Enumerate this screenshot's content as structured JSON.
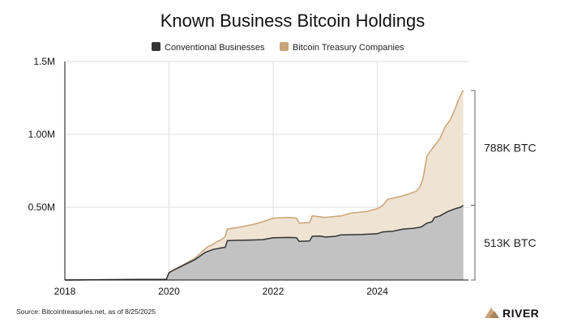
{
  "chart_data": {
    "type": "area",
    "title": "Known Business Bitcoin Holdings",
    "xlabel": "",
    "ylabel": "",
    "xlim": [
      2018.0,
      2025.75
    ],
    "ylim": [
      0,
      1500000
    ],
    "x_ticks": [
      {
        "value": 2018,
        "label": "2018"
      },
      {
        "value": 2020,
        "label": "2020"
      },
      {
        "value": 2022,
        "label": "2022"
      },
      {
        "value": 2024,
        "label": "2024"
      }
    ],
    "y_ticks": [
      {
        "value": 500000,
        "label": "0.50M"
      },
      {
        "value": 1000000,
        "label": "1.00M"
      },
      {
        "value": 1500000,
        "label": "1.5M"
      }
    ],
    "grid": true,
    "stacked": true,
    "legend": "top",
    "series": [
      {
        "name": "Conventional Businesses",
        "color": "#333333",
        "fill": "#c2c2c2",
        "points": [
          [
            2018.0,
            0
          ],
          [
            2018.5,
            1000
          ],
          [
            2019.0,
            3000
          ],
          [
            2019.5,
            4000
          ],
          [
            2019.95,
            5000
          ],
          [
            2020.0,
            50000
          ],
          [
            2020.1,
            70000
          ],
          [
            2020.3,
            105000
          ],
          [
            2020.5,
            140000
          ],
          [
            2020.7,
            190000
          ],
          [
            2020.85,
            210000
          ],
          [
            2021.0,
            220000
          ],
          [
            2021.08,
            225000
          ],
          [
            2021.12,
            270000
          ],
          [
            2021.25,
            272000
          ],
          [
            2021.5,
            274000
          ],
          [
            2021.8,
            277000
          ],
          [
            2022.0,
            290000
          ],
          [
            2022.3,
            292000
          ],
          [
            2022.45,
            290000
          ],
          [
            2022.5,
            265000
          ],
          [
            2022.7,
            268000
          ],
          [
            2022.75,
            300000
          ],
          [
            2022.9,
            302000
          ],
          [
            2023.0,
            295000
          ],
          [
            2023.2,
            300000
          ],
          [
            2023.3,
            310000
          ],
          [
            2023.7,
            312000
          ],
          [
            2024.0,
            318000
          ],
          [
            2024.1,
            330000
          ],
          [
            2024.3,
            335000
          ],
          [
            2024.5,
            350000
          ],
          [
            2024.7,
            355000
          ],
          [
            2024.85,
            365000
          ],
          [
            2024.95,
            390000
          ],
          [
            2025.05,
            400000
          ],
          [
            2025.1,
            430000
          ],
          [
            2025.2,
            440000
          ],
          [
            2025.35,
            470000
          ],
          [
            2025.5,
            490000
          ],
          [
            2025.6,
            500000
          ],
          [
            2025.65,
            513000
          ]
        ]
      },
      {
        "name": "Bitcoin Treasury Companies",
        "color": "#c9a478",
        "fill": "#efe3d3",
        "points": [
          [
            2018.0,
            0
          ],
          [
            2018.5,
            1000
          ],
          [
            2019.0,
            3000
          ],
          [
            2019.5,
            4000
          ],
          [
            2019.95,
            5000
          ],
          [
            2020.0,
            52000
          ],
          [
            2020.3,
            110000
          ],
          [
            2020.5,
            150000
          ],
          [
            2020.65,
            200000
          ],
          [
            2020.75,
            230000
          ],
          [
            2020.85,
            245000
          ],
          [
            2020.9,
            260000
          ],
          [
            2021.0,
            275000
          ],
          [
            2021.08,
            300000
          ],
          [
            2021.12,
            350000
          ],
          [
            2021.3,
            360000
          ],
          [
            2021.6,
            380000
          ],
          [
            2021.8,
            400000
          ],
          [
            2022.0,
            425000
          ],
          [
            2022.3,
            430000
          ],
          [
            2022.45,
            425000
          ],
          [
            2022.5,
            390000
          ],
          [
            2022.7,
            395000
          ],
          [
            2022.75,
            440000
          ],
          [
            2023.0,
            430000
          ],
          [
            2023.3,
            440000
          ],
          [
            2023.5,
            460000
          ],
          [
            2023.8,
            470000
          ],
          [
            2024.0,
            490000
          ],
          [
            2024.1,
            510000
          ],
          [
            2024.2,
            555000
          ],
          [
            2024.4,
            570000
          ],
          [
            2024.6,
            590000
          ],
          [
            2024.75,
            610000
          ],
          [
            2024.82,
            640000
          ],
          [
            2024.88,
            700000
          ],
          [
            2024.95,
            850000
          ],
          [
            2025.05,
            900000
          ],
          [
            2025.2,
            970000
          ],
          [
            2025.3,
            1050000
          ],
          [
            2025.4,
            1100000
          ],
          [
            2025.5,
            1180000
          ],
          [
            2025.55,
            1230000
          ],
          [
            2025.6,
            1270000
          ],
          [
            2025.65,
            1301000
          ]
        ]
      }
    ],
    "annotations": [
      {
        "label": "788K BTC",
        "from": 513000,
        "to": 1301000
      },
      {
        "label": "513K BTC",
        "from": 0,
        "to": 513000
      }
    ]
  },
  "source": "Source: Bitcointreasuries.net, as of 8/25/2025",
  "brand": "RIVER",
  "colors": {
    "axis": "#111111",
    "grid": "#dedede",
    "bracket": "#666666",
    "brand_mark": "#c9a478"
  }
}
